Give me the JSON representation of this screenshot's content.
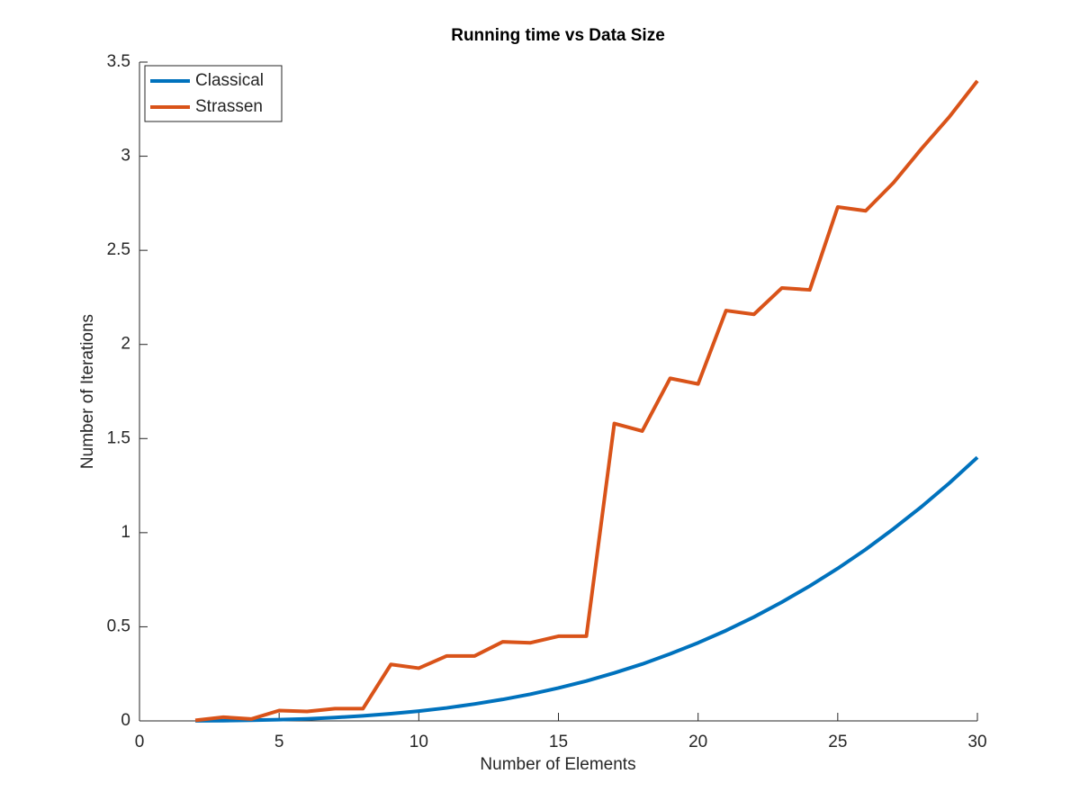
{
  "chart_data": {
    "type": "line",
    "title": "Running time vs Data Size",
    "x_label": "Number of Elements",
    "y_label": "Number of Iterations",
    "x": [
      2,
      3,
      4,
      5,
      6,
      7,
      8,
      9,
      10,
      11,
      12,
      13,
      14,
      15,
      16,
      17,
      18,
      19,
      20,
      21,
      22,
      23,
      24,
      25,
      26,
      27,
      28,
      29,
      30
    ],
    "series": [
      {
        "name": "Classical",
        "color": "#0072BD",
        "values": [
          0.0004,
          0.0014,
          0.0033,
          0.0065,
          0.011,
          0.018,
          0.027,
          0.038,
          0.052,
          0.069,
          0.09,
          0.114,
          0.142,
          0.175,
          0.212,
          0.255,
          0.302,
          0.356,
          0.415,
          0.48,
          0.552,
          0.631,
          0.717,
          0.81,
          0.911,
          1.021,
          1.138,
          1.264,
          1.4
        ]
      },
      {
        "name": "Strassen",
        "color": "#D95319",
        "values": [
          0.003,
          0.02,
          0.01,
          0.055,
          0.05,
          0.065,
          0.065,
          0.3,
          0.28,
          0.345,
          0.345,
          0.42,
          0.415,
          0.45,
          0.45,
          1.58,
          1.54,
          1.82,
          1.79,
          2.18,
          2.16,
          2.3,
          2.29,
          2.73,
          2.71,
          2.86,
          3.04,
          3.21,
          3.4
        ]
      }
    ],
    "xlim": [
      0,
      30
    ],
    "xticks": [
      0,
      5,
      10,
      15,
      20,
      25,
      30
    ],
    "ylim": [
      0,
      3.5
    ],
    "yticks": [
      0,
      0.5,
      1,
      1.5,
      2,
      2.5,
      3,
      3.5
    ],
    "legend": "upper left",
    "grid": false
  }
}
